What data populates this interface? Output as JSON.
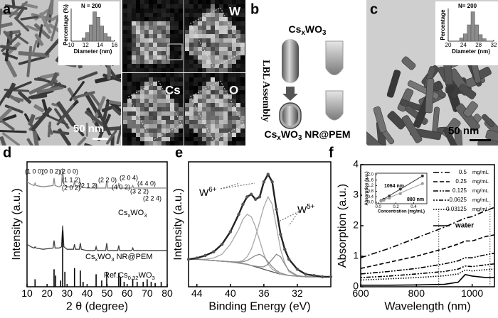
{
  "figure": {
    "panel_labels": [
      "a",
      "b",
      "c",
      "d",
      "e",
      "f"
    ],
    "a": {
      "map_labels": [
        "W",
        "Cs",
        "O"
      ],
      "scale_bar": "50 nm"
    },
    "b": {
      "top_label": [
        "Cs",
        "x",
        "WO",
        "3"
      ],
      "side_label": "LBL Assembly",
      "bottom_label": [
        "Cs",
        "x",
        "WO",
        "3",
        " NR@PEM"
      ]
    },
    "c": {
      "scale_bar": "50 nm"
    }
  },
  "chart_data": [
    {
      "type": "histogram",
      "annotation": "N = 200",
      "xlabel": "Diameter (nm)",
      "ylabel": "Percentage (%)",
      "bins": [
        11.5,
        12,
        12.5,
        13,
        13.5,
        14,
        14.5,
        15,
        15.5
      ],
      "values": [
        3,
        8,
        15,
        27,
        22,
        14,
        7,
        4
      ],
      "color": "#8c8c8c",
      "xlim": [
        10,
        16
      ],
      "xticks": [
        10,
        12,
        14,
        16
      ],
      "ylim": [
        0,
        30
      ]
    },
    {
      "type": "histogram",
      "annotation": "N= 200",
      "xlabel": "Diameter (nm)",
      "ylabel": "Percentage",
      "bins": [
        23,
        24,
        25,
        26,
        27,
        28,
        29,
        30
      ],
      "values": [
        4,
        9,
        20,
        36,
        20,
        8,
        3
      ],
      "color": "#8c8c8c",
      "xlim": [
        20,
        32
      ],
      "xticks": [
        20,
        24,
        28,
        32
      ],
      "ylim": [
        0,
        40
      ]
    },
    {
      "type": "line",
      "xlabel": "2 θ (degree)",
      "ylabel": "Intensity (a.u.)",
      "annotations": [
        "(1 0 0)",
        "(0 0 2)",
        "(2 0 0)",
        "(1 1 2)",
        "(2 0 2)",
        "(2 1 2)",
        "(2 2 0)",
        "(2 0 4)",
        "(4 0 2)",
        "(4 4 0)",
        "(3 2 2)",
        "(2 2 4)"
      ],
      "xlim": [
        10,
        80
      ],
      "xticks": [
        10,
        20,
        30,
        40,
        50,
        60,
        70,
        80
      ],
      "ylim": [
        0,
        100
      ],
      "x": [
        10,
        12,
        13.5,
        14,
        14.5,
        18,
        23,
        23.5,
        24,
        26,
        27.2,
        27.8,
        28.4,
        30,
        33.2,
        33.7,
        34.2,
        36.1,
        36.6,
        37.1,
        40,
        44,
        44.5,
        45,
        49.3,
        49.8,
        50.3,
        55.3,
        55.8,
        56.3,
        62.3,
        62.8,
        63.3,
        68,
        80
      ],
      "series": [
        {
          "name": [
            "Cs",
            "x",
            "WO",
            "3"
          ],
          "color": "#8a8a8a",
          "values": [
            84,
            82,
            81,
            83,
            81,
            80,
            81,
            87,
            81,
            80,
            81,
            95,
            82,
            80,
            80,
            85,
            80,
            80,
            84,
            80,
            79,
            79,
            82,
            79,
            79,
            85,
            79,
            79,
            83,
            79,
            79,
            81,
            79,
            79,
            79
          ]
        },
        {
          "name": [
            "Cs",
            "x",
            "WO",
            "3",
            " NR@PEM"
          ],
          "color": "#404040",
          "values": [
            34,
            32,
            31,
            32,
            31,
            30,
            31,
            37,
            31,
            31,
            32,
            49,
            32,
            30,
            30,
            34,
            30,
            30,
            35,
            30,
            29,
            29,
            32,
            29,
            29,
            35,
            29,
            29,
            33,
            29,
            29,
            31,
            29,
            29,
            29
          ]
        },
        {
          "name": [
            "Ref.Cs",
            "0.32",
            "WO",
            "3"
          ],
          "color": "#000000",
          "style": "stick",
          "x": [
            14,
            23.5,
            24.3,
            26.8,
            27.8,
            28.9,
            33.7,
            36.6,
            38,
            44.5,
            47.3,
            49.8,
            55.8,
            56.7,
            58.5,
            62.8,
            65,
            68,
            70,
            72,
            74,
            77
          ],
          "values": [
            6,
            14,
            9,
            5,
            45,
            12,
            15,
            13,
            4,
            10,
            5,
            12,
            11,
            8,
            4,
            6,
            4,
            4,
            6,
            4,
            3,
            4
          ]
        }
      ]
    },
    {
      "type": "line",
      "xlabel": "Binding Energy (eV)",
      "ylabel": "Intensity (a.u.)",
      "annotations": [
        [
          "W",
          "6+"
        ],
        [
          "W",
          "5+"
        ]
      ],
      "xlim": [
        45,
        28
      ],
      "xticks": [
        44,
        40,
        36,
        32
      ],
      "ylim": [
        0,
        100
      ],
      "x": [
        45,
        44,
        43,
        42,
        41,
        40,
        39,
        38.5,
        38,
        37.5,
        37,
        36.5,
        36,
        35.5,
        35,
        34.5,
        34,
        33.5,
        33,
        32,
        31,
        30,
        29,
        28
      ],
      "series": [
        {
          "color": "#555555",
          "values": [
            22,
            22,
            21.5,
            21,
            20.5,
            20,
            19,
            18.5,
            18,
            17,
            16,
            15,
            14,
            13,
            12,
            11,
            10,
            9.5,
            9,
            8.5,
            8,
            8,
            8,
            8
          ]
        },
        {
          "color": "#a8a8a8",
          "values": [
            22,
            22,
            22,
            23,
            26,
            34,
            46,
            54,
            58,
            56,
            48,
            37,
            26,
            18,
            14,
            12,
            10,
            9.5,
            9,
            8.5,
            8,
            8,
            8,
            8
          ]
        },
        {
          "color": "#a8a8a8",
          "values": [
            22,
            22,
            21.5,
            21,
            20.5,
            20,
            20,
            21,
            24,
            30,
            40,
            52,
            64,
            72,
            66,
            48,
            30,
            19,
            12,
            8.5,
            8,
            8,
            8,
            8
          ]
        },
        {
          "color": "#8a8a8a",
          "values": [
            22,
            22,
            21.5,
            21,
            20.5,
            20,
            19,
            18.5,
            18,
            17,
            16.5,
            16,
            16,
            18,
            22,
            26,
            24,
            18,
            13,
            9,
            8,
            8,
            8,
            8
          ]
        },
        {
          "color": "#8a8a8a",
          "values": [
            22,
            22,
            21.5,
            21,
            20.5,
            20,
            19.5,
            20,
            21,
            23,
            25,
            26,
            24,
            20,
            16,
            13,
            11,
            10,
            9,
            8.5,
            8,
            8,
            8,
            8
          ]
        },
        {
          "color": "#222222",
          "marker": true,
          "values": [
            22,
            23,
            25,
            28,
            34,
            44,
            58,
            66,
            72,
            74,
            70,
            72,
            84,
            90,
            84,
            62,
            42,
            30,
            22,
            14,
            10,
            9,
            8,
            8
          ]
        }
      ]
    },
    {
      "type": "line",
      "xlabel": "Wavelength (nm)",
      "ylabel": "Absorption (a.u.)",
      "xlim": [
        600,
        1080
      ],
      "xticks": [
        600,
        800,
        1000
      ],
      "ylim": [
        0,
        4
      ],
      "yticks": [
        0,
        1,
        2,
        3,
        4
      ],
      "legend": "top-right",
      "reference_lines": [
        880,
        1064
      ],
      "x": [
        600,
        700,
        800,
        900,
        950,
        975,
        1000,
        1050,
        1080
      ],
      "series": [
        {
          "name": "0.5",
          "unit": "mg/mL",
          "color": "#000000",
          "dash": "dash-dot",
          "values": [
            0.95,
            1.25,
            1.6,
            1.95,
            2.15,
            2.25,
            2.3,
            2.5,
            2.6
          ]
        },
        {
          "name": "0.25",
          "unit": "mg/mL",
          "color": "#000000",
          "dash": "dash",
          "values": [
            0.6,
            0.8,
            1.0,
            1.25,
            1.4,
            1.5,
            1.5,
            1.65,
            1.7
          ]
        },
        {
          "name": "0.125",
          "unit": "mg/mL",
          "color": "#000000",
          "dash": "dash-dot-dot",
          "values": [
            0.42,
            0.5,
            0.6,
            0.75,
            0.85,
            0.95,
            0.95,
            1.05,
            1.1
          ]
        },
        {
          "name": "0.0625",
          "unit": "mg/mL",
          "color": "#000000",
          "dash": "dot-dash",
          "values": [
            0.3,
            0.35,
            0.42,
            0.5,
            0.58,
            0.68,
            0.66,
            0.72,
            0.75
          ]
        },
        {
          "name": "0.03125",
          "unit": "mg/mL",
          "color": "#000000",
          "dash": "dot",
          "values": [
            0.22,
            0.26,
            0.3,
            0.36,
            0.42,
            0.55,
            0.52,
            0.56,
            0.58
          ]
        },
        {
          "name": "water",
          "color": "#000000",
          "dash": "solid",
          "values": [
            0.05,
            0.05,
            0.06,
            0.08,
            0.15,
            0.4,
            0.35,
            0.3,
            0.3
          ]
        }
      ]
    },
    {
      "type": "scatter",
      "xlabel": "Concentration (mg/mL)",
      "ylabel": "Absorption (a.u.)",
      "xlim": [
        -0.03,
        0.55
      ],
      "xticks": [
        {
          "value": 0,
          "label": "0.0"
        },
        0.2,
        0.4
      ],
      "ylim": [
        -0.1,
        2.1
      ],
      "yticks": [
        {
          "value": 0,
          "label": "0.0"
        },
        0.4,
        0.8,
        1.2,
        1.6,
        {
          "value": 2,
          "label": "2.0"
        }
      ],
      "x": [
        0.03125,
        0.0625,
        0.125,
        0.25,
        0.5
      ],
      "series": [
        {
          "name": "1064 nm",
          "color": "#333333",
          "values": [
            0.12,
            0.22,
            0.45,
            0.95,
            1.9
          ]
        },
        {
          "name": "880 nm",
          "color": "#9a9a9a",
          "values": [
            0.08,
            0.15,
            0.3,
            0.62,
            1.35
          ]
        }
      ]
    }
  ]
}
